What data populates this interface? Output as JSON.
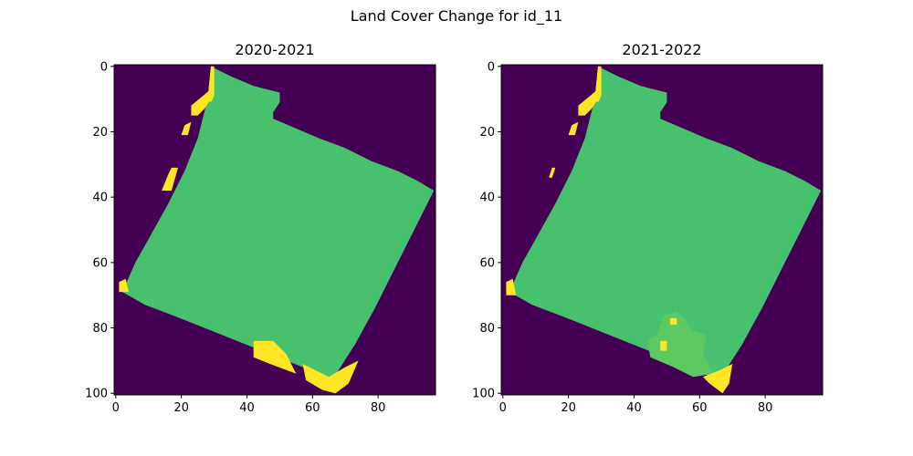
{
  "figure": {
    "title": "Land Cover Change for id_11"
  },
  "colors": {
    "background": "#440154",
    "field": "#48c16e",
    "field_changed": "#5ec962",
    "change": "#fde725"
  },
  "chart_data": [
    {
      "type": "heatmap",
      "title": "2020-2021",
      "xlim": [
        0,
        97
      ],
      "ylim": [
        100,
        0
      ],
      "xticks": [
        0,
        20,
        40,
        60,
        80
      ],
      "yticks": [
        0,
        20,
        40,
        60,
        80,
        100
      ],
      "grid": false,
      "classes": [
        "no data",
        "unchanged",
        "change"
      ],
      "field_polygon": [
        [
          29,
          0
        ],
        [
          35,
          3
        ],
        [
          42,
          6
        ],
        [
          50,
          8
        ],
        [
          50,
          11
        ],
        [
          48,
          14
        ],
        [
          48,
          16
        ],
        [
          55,
          19
        ],
        [
          62,
          22
        ],
        [
          70,
          25
        ],
        [
          78,
          29
        ],
        [
          86,
          32
        ],
        [
          92,
          35
        ],
        [
          97,
          38
        ],
        [
          91,
          50
        ],
        [
          85,
          62
        ],
        [
          79,
          74
        ],
        [
          73,
          85
        ],
        [
          66,
          96
        ],
        [
          57,
          92
        ],
        [
          47,
          88
        ],
        [
          37,
          84
        ],
        [
          27,
          80
        ],
        [
          17,
          76
        ],
        [
          9,
          73
        ],
        [
          2,
          69
        ],
        [
          6,
          60
        ],
        [
          11,
          51
        ],
        [
          16,
          42
        ],
        [
          21,
          32
        ],
        [
          25,
          22
        ],
        [
          28,
          10
        ]
      ],
      "change_regions": [
        [
          [
            29,
            0
          ],
          [
            30,
            0
          ],
          [
            30,
            9
          ],
          [
            29,
            11
          ],
          [
            28,
            10
          ]
        ],
        [
          [
            23,
            12
          ],
          [
            29,
            7
          ],
          [
            29,
            10
          ],
          [
            27,
            13
          ],
          [
            25,
            15
          ],
          [
            23,
            15
          ]
        ],
        [
          [
            21,
            18
          ],
          [
            23,
            17
          ],
          [
            22,
            21
          ],
          [
            20,
            21
          ]
        ],
        [
          [
            17,
            31
          ],
          [
            19,
            31
          ],
          [
            17,
            38
          ],
          [
            14,
            38
          ],
          [
            16,
            33
          ]
        ],
        [
          [
            1,
            66
          ],
          [
            3,
            65
          ],
          [
            4,
            69
          ],
          [
            1,
            69
          ]
        ],
        [
          [
            42,
            84
          ],
          [
            48,
            84
          ],
          [
            52,
            88
          ],
          [
            55,
            94
          ],
          [
            47,
            91
          ],
          [
            42,
            89
          ]
        ],
        [
          [
            57,
            91
          ],
          [
            65,
            95
          ],
          [
            70,
            92
          ],
          [
            74,
            90
          ],
          [
            71,
            97
          ],
          [
            67,
            100
          ],
          [
            63,
            99
          ],
          [
            58,
            96
          ]
        ]
      ]
    },
    {
      "type": "heatmap",
      "title": "2021-2022",
      "xlim": [
        0,
        97
      ],
      "ylim": [
        100,
        0
      ],
      "xticks": [
        0,
        20,
        40,
        60,
        80
      ],
      "yticks": [
        0,
        20,
        40,
        60,
        80,
        100
      ],
      "grid": false,
      "classes": [
        "no data",
        "unchanged",
        "minor change",
        "change"
      ],
      "field_polygon": [
        [
          29,
          0
        ],
        [
          35,
          3
        ],
        [
          42,
          6
        ],
        [
          50,
          8
        ],
        [
          50,
          11
        ],
        [
          48,
          14
        ],
        [
          48,
          16
        ],
        [
          55,
          19
        ],
        [
          62,
          22
        ],
        [
          70,
          25
        ],
        [
          78,
          29
        ],
        [
          86,
          32
        ],
        [
          92,
          35
        ],
        [
          97,
          38
        ],
        [
          91,
          50
        ],
        [
          85,
          62
        ],
        [
          79,
          74
        ],
        [
          73,
          85
        ],
        [
          66,
          96
        ],
        [
          57,
          92
        ],
        [
          47,
          88
        ],
        [
          37,
          84
        ],
        [
          27,
          80
        ],
        [
          17,
          76
        ],
        [
          9,
          73
        ],
        [
          2,
          69
        ],
        [
          6,
          60
        ],
        [
          11,
          51
        ],
        [
          16,
          42
        ],
        [
          21,
          32
        ],
        [
          25,
          22
        ],
        [
          28,
          10
        ]
      ],
      "minor_regions": [
        [
          [
            49,
            76
          ],
          [
            53,
            75
          ],
          [
            56,
            78
          ],
          [
            58,
            81
          ],
          [
            62,
            82
          ],
          [
            61,
            88
          ],
          [
            64,
            94
          ],
          [
            58,
            95
          ],
          [
            52,
            92
          ],
          [
            45,
            89
          ],
          [
            44,
            84
          ],
          [
            47,
            82
          ]
        ]
      ],
      "change_regions": [
        [
          [
            29,
            0
          ],
          [
            30,
            0
          ],
          [
            30,
            9
          ],
          [
            29,
            11
          ],
          [
            28,
            10
          ]
        ],
        [
          [
            23,
            12
          ],
          [
            29,
            7
          ],
          [
            29,
            10
          ],
          [
            27,
            13
          ],
          [
            25,
            15
          ],
          [
            23,
            15
          ]
        ],
        [
          [
            21,
            18
          ],
          [
            23,
            17
          ],
          [
            22,
            21
          ],
          [
            20,
            21
          ]
        ],
        [
          [
            15,
            31
          ],
          [
            16,
            31
          ],
          [
            15,
            34
          ],
          [
            14,
            34
          ]
        ],
        [
          [
            1,
            66
          ],
          [
            3,
            65
          ],
          [
            4,
            70
          ],
          [
            1,
            70
          ]
        ],
        [
          [
            51,
            77
          ],
          [
            53,
            77
          ],
          [
            53,
            79
          ],
          [
            51,
            79
          ]
        ],
        [
          [
            48,
            84
          ],
          [
            50,
            84
          ],
          [
            50,
            87
          ],
          [
            48,
            87
          ]
        ],
        [
          [
            61,
            95
          ],
          [
            66,
            93
          ],
          [
            70,
            91
          ],
          [
            69,
            97
          ],
          [
            67,
            100
          ],
          [
            63,
            97
          ]
        ]
      ]
    }
  ]
}
